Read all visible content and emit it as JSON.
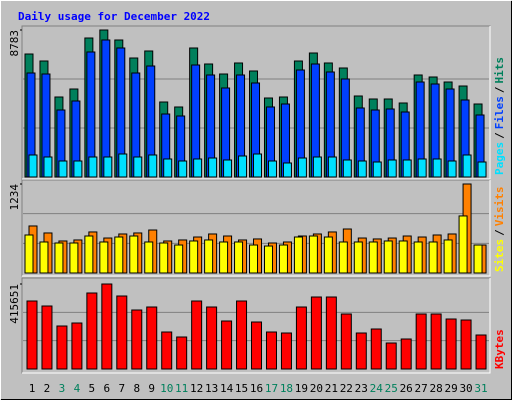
{
  "chart_data": {
    "type": "bar",
    "title": "Daily usage for December 2022",
    "categories": [
      "1",
      "2",
      "3",
      "4",
      "5",
      "6",
      "7",
      "8",
      "9",
      "10",
      "11",
      "12",
      "13",
      "14",
      "15",
      "16",
      "17",
      "18",
      "19",
      "20",
      "21",
      "22",
      "23",
      "24",
      "25",
      "26",
      "27",
      "28",
      "29",
      "30",
      "31"
    ],
    "category_colors": [
      "#000000",
      "#000000",
      "#00805c",
      "#00805c",
      "#000000",
      "#000000",
      "#000000",
      "#000000",
      "#000000",
      "#00805c",
      "#00805c",
      "#000000",
      "#000000",
      "#000000",
      "#000000",
      "#000000",
      "#00805c",
      "#00805c",
      "#000000",
      "#000000",
      "#000000",
      "#000000",
      "#000000",
      "#00805c",
      "#00805c",
      "#000000",
      "#000000",
      "#000000",
      "#000000",
      "#000000",
      "#00805c"
    ],
    "legend_separator": "/",
    "panels": [
      {
        "ylim": [
          0,
          8783
        ],
        "yticks": [
          8783
        ],
        "series": [
          {
            "name": "Pages",
            "color": "#00e0ff",
            "values": [
              1315,
              1195,
              956,
              956,
              1195,
              1195,
              1374,
              1195,
              1315,
              1076,
              956,
              1076,
              1135,
              1016,
              1255,
              1374,
              956,
              837,
              1135,
              1195,
              1195,
              1016,
              956,
              896,
              1016,
              1016,
              1076,
              1076,
              956,
              1315,
              896
            ]
          },
          {
            "name": "Files",
            "color": "#0040ff",
            "values": [
              6214,
              6154,
              4003,
              4541,
              7469,
              8186,
              7708,
              6214,
              6632,
              3764,
              3645,
              6692,
              6095,
              5318,
              6095,
              5617,
              4183,
              4362,
              6393,
              6752,
              6274,
              5856,
              4123,
              4003,
              4063,
              3884,
              5676,
              5557,
              5258,
              4601,
              3705
            ]
          },
          {
            "name": "Hits",
            "color": "#00805c",
            "values": [
              7349,
              6931,
              4780,
              5258,
              8305,
              8783,
              8186,
              7110,
              7529,
              4481,
              4183,
              7708,
              6752,
              6154,
              6812,
              6334,
              4720,
              4780,
              6931,
              7409,
              6812,
              6513,
              4840,
              4661,
              4661,
              4422,
              6095,
              5975,
              5676,
              5437,
              4362
            ]
          }
        ]
      },
      {
        "ylim": [
          0,
          1234
        ],
        "yticks": [
          1234
        ],
        "series": [
          {
            "name": "Sites",
            "color": "#ffff00",
            "values": [
              527,
              430,
              416,
              416,
              513,
              430,
              499,
              513,
              430,
              416,
              388,
              444,
              458,
              430,
              430,
              388,
              374,
              388,
              499,
              513,
              499,
              430,
              430,
              430,
              444,
              444,
              430,
              430,
              458,
              791,
              388
            ]
          },
          {
            "name": "Visits",
            "color": "#ff8000",
            "values": [
              652,
              555,
              444,
              458,
              569,
              485,
              541,
              555,
              596,
              444,
              458,
              499,
              541,
              513,
              458,
              472,
              416,
              430,
              513,
              541,
              569,
              610,
              485,
              472,
              485,
              513,
              499,
              527,
              541,
              1234,
              388
            ]
          }
        ]
      },
      {
        "ylim": [
          0,
          415651
        ],
        "yticks": [
          415651
        ],
        "series": [
          {
            "name": "KBytes",
            "color": "#ff0000",
            "values": [
              332520,
              308070,
              210270,
              224940,
              371640,
              415651,
              356970,
              288510,
              303180,
              180930,
              156480,
              332520,
              303180,
              234720,
              332520,
              229830,
              180930,
              176040,
              303180,
              352080,
              352080,
              268950,
              176040,
              195600,
              127140,
              146700,
              268950,
              268950,
              244500,
              239610,
              166260
            ]
          }
        ]
      }
    ]
  }
}
